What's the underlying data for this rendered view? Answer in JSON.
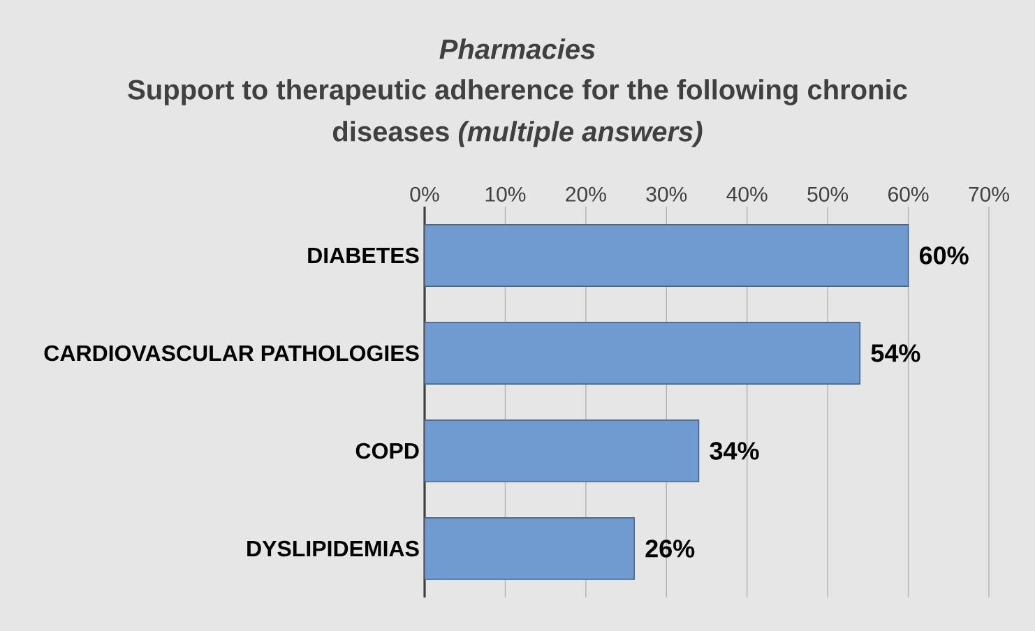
{
  "chart_data": {
    "type": "bar",
    "orientation": "horizontal",
    "title": "Pharmacies",
    "subtitle": "Support to therapeutic adherence for the following chronic diseases *(multiple answers)*",
    "categories": [
      "DIABETES",
      "CARDIOVASCULAR PATHOLOGIES",
      "COPD",
      "DYSLIPIDEMIAS"
    ],
    "values": [
      60,
      54,
      34,
      26
    ],
    "value_labels": [
      "60%",
      "54%",
      "34%",
      "26%"
    ],
    "color": "#6f9bd1",
    "xlim": [
      0,
      70
    ],
    "xticks": [
      {
        "value": 0,
        "label": "0%"
      },
      {
        "value": 10,
        "label": "10%"
      },
      {
        "value": 20,
        "label": "20%"
      },
      {
        "value": 30,
        "label": "30%"
      },
      {
        "value": 40,
        "label": "40%"
      },
      {
        "value": 50,
        "label": "50%"
      },
      {
        "value": 60,
        "label": "60%"
      },
      {
        "value": 70,
        "label": "70%"
      }
    ],
    "grid": "x"
  }
}
